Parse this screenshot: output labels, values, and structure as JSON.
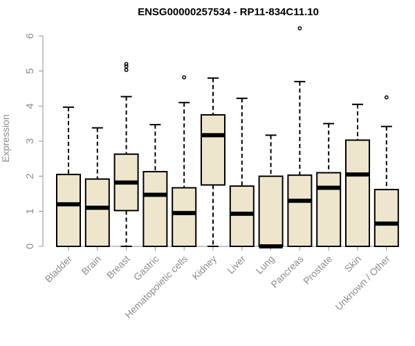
{
  "chart_data": {
    "type": "boxplot",
    "title": "ENSG00000257534 - RP11-834C11.10",
    "xlabel": "",
    "ylabel": "Expression",
    "ylim": [
      0,
      6
    ],
    "yticks": [
      "0",
      "1",
      "2",
      "3",
      "4",
      "5",
      "6"
    ],
    "grid": false,
    "colors": {
      "box_fill": "#ede5cc",
      "box_stroke": "#000000",
      "axis": "#8c8c8c",
      "label": "#8c8c8c"
    },
    "categories": [
      "Bladder",
      "Brain",
      "Breast",
      "Gastric",
      "Hematopoietic cells",
      "Kidney",
      "Liver",
      "Lung",
      "Pancreas",
      "Prostate",
      "Skin",
      "Unknown / Other"
    ],
    "boxes": [
      {
        "category": "Bladder",
        "whisker_low": 0,
        "q1": 0,
        "median": 1.2,
        "q3": 2.05,
        "whisker_high": 3.97,
        "outliers": []
      },
      {
        "category": "Brain",
        "whisker_low": 0,
        "q1": 0,
        "median": 1.1,
        "q3": 1.92,
        "whisker_high": 3.38,
        "outliers": []
      },
      {
        "category": "Breast",
        "whisker_low": 0,
        "q1": 1.02,
        "median": 1.82,
        "q3": 2.63,
        "whisker_high": 4.27,
        "outliers": [
          5.03,
          5.13,
          5.2
        ]
      },
      {
        "category": "Gastric",
        "whisker_low": 0,
        "q1": 0,
        "median": 1.47,
        "q3": 2.13,
        "whisker_high": 3.47,
        "outliers": []
      },
      {
        "category": "Hematopoietic cells",
        "whisker_low": 0,
        "q1": 0,
        "median": 0.95,
        "q3": 1.67,
        "whisker_high": 4.1,
        "outliers": [
          4.82
        ]
      },
      {
        "category": "Kidney",
        "whisker_low": 0,
        "q1": 1.75,
        "median": 3.17,
        "q3": 3.75,
        "whisker_high": 4.8,
        "outliers": []
      },
      {
        "category": "Liver",
        "whisker_low": 0,
        "q1": 0,
        "median": 0.93,
        "q3": 1.72,
        "whisker_high": 4.22,
        "outliers": []
      },
      {
        "category": "Lung",
        "whisker_low": 0,
        "q1": 0,
        "median": 0,
        "q3": 2,
        "whisker_high": 3.17,
        "outliers": []
      },
      {
        "category": "Pancreas",
        "whisker_low": 0,
        "q1": 0,
        "median": 1.3,
        "q3": 2.03,
        "whisker_high": 4.7,
        "outliers": [
          6.22
        ]
      },
      {
        "category": "Prostate",
        "whisker_low": 0,
        "q1": 0,
        "median": 1.67,
        "q3": 2.1,
        "whisker_high": 3.5,
        "outliers": []
      },
      {
        "category": "Skin",
        "whisker_low": 0,
        "q1": 0,
        "median": 2.05,
        "q3": 3.03,
        "whisker_high": 4.05,
        "outliers": []
      },
      {
        "category": "Unknown / Other",
        "whisker_low": 0,
        "q1": 0,
        "median": 0.65,
        "q3": 1.62,
        "whisker_high": 3.42,
        "outliers": [
          4.25
        ]
      }
    ]
  }
}
